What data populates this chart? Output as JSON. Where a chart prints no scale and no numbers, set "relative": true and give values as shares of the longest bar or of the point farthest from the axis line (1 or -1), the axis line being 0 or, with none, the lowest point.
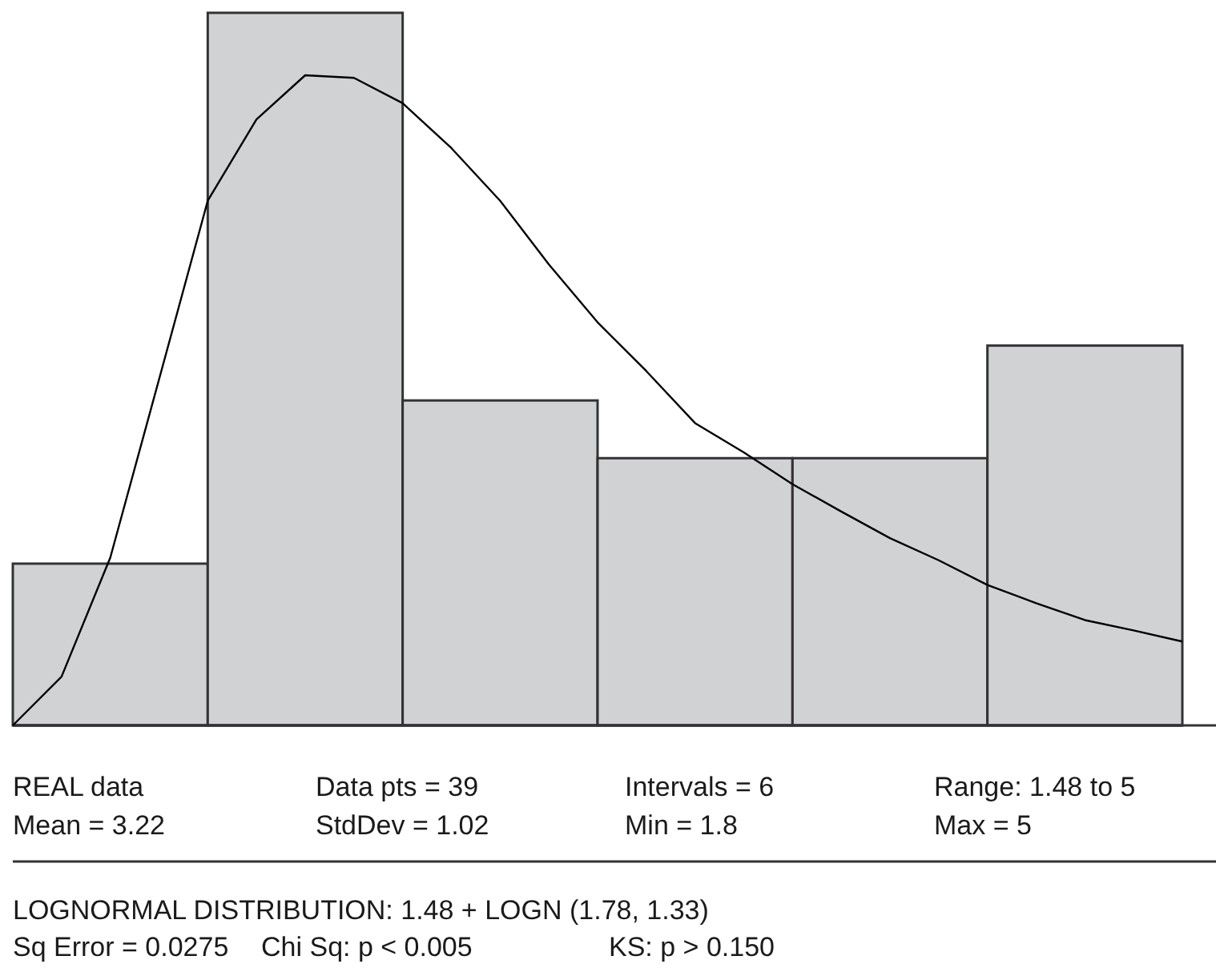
{
  "chart_data": [
    {
      "type": "bar",
      "relative": true,
      "categories": [
        null,
        null,
        null,
        null,
        null,
        null
      ],
      "values": [
        0.227,
        1,
        0.456,
        0.375,
        0.375,
        0.533
      ],
      "color": "#d1d2d4",
      "annotations": [
        "REAL data",
        "Data pts = 39",
        "Intervals = 6",
        "Range: 1.48 to 5",
        "Mean = 3.22",
        "StdDev = 1.02",
        "Min = 1.8",
        "Max = 5",
        "LOGNORMAL DISTRIBUTION:   1.48 + LOGN (1.78, 1.33)",
        "Sq Error = 0.0275",
        "Chi Sq: p < 0.005",
        "KS: p > 0.150"
      ]
    },
    {
      "type": "line",
      "relative": true,
      "categories": [
        null,
        null,
        null,
        null,
        null,
        null,
        null,
        null,
        null,
        null,
        null,
        null,
        null,
        null,
        null,
        null,
        null,
        null,
        null,
        null,
        null,
        null,
        null,
        null,
        null
      ],
      "series": [
        {
          "color": "#000000",
          "values": [
            0,
            0.075,
            0.258,
            0.532,
            0.807,
            0.932,
            1,
            0.996,
            0.957,
            0.888,
            0.807,
            0.709,
            0.62,
            0.545,
            0.465,
            0.42,
            0.371,
            0.329,
            0.288,
            0.254,
            0.216,
            0.188,
            0.162,
            0.146,
            0.129
          ]
        }
      ]
    }
  ]
}
